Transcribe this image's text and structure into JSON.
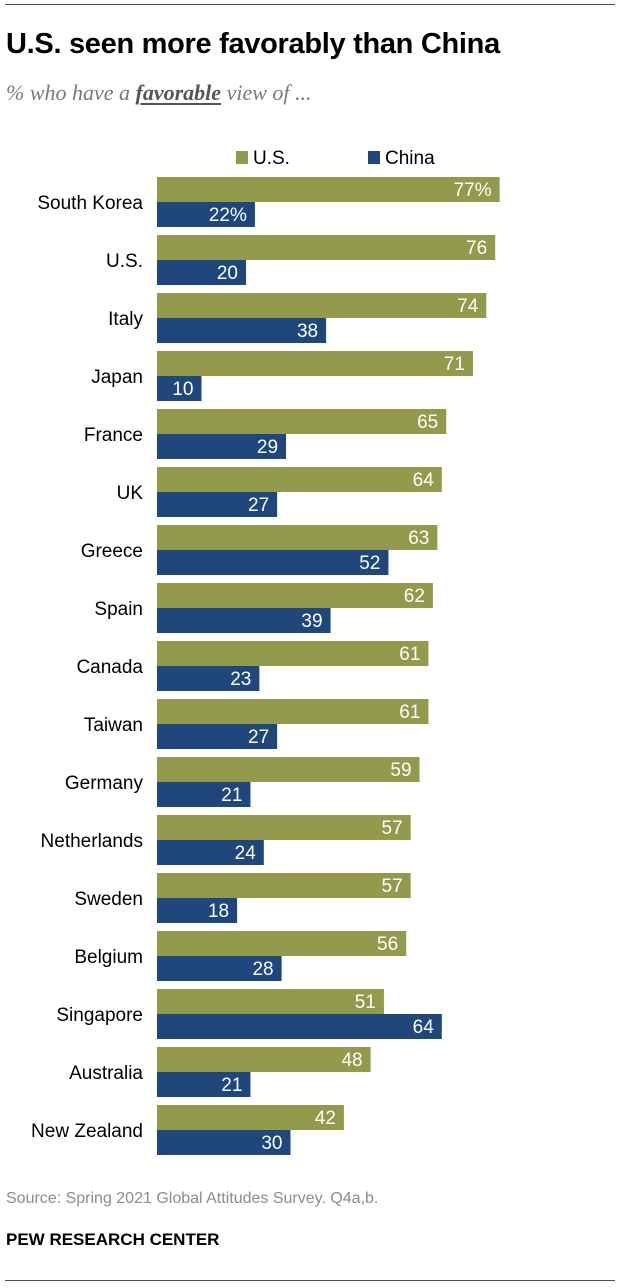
{
  "header": {
    "title": "U.S. seen more favorably than China",
    "subtitle_prefix": "% who have a ",
    "subtitle_emphasis": "favorable",
    "subtitle_suffix": " view of ..."
  },
  "chart_data": {
    "type": "bar",
    "orientation": "horizontal",
    "title": "U.S. seen more favorably than China",
    "subtitle": "% who have a favorable view of ...",
    "categories": [
      "South Korea",
      "U.S.",
      "Italy",
      "Japan",
      "France",
      "UK",
      "Greece",
      "Spain",
      "Canada",
      "Taiwan",
      "Germany",
      "Netherlands",
      "Sweden",
      "Belgium",
      "Singapore",
      "Australia",
      "New Zealand"
    ],
    "series": [
      {
        "name": "U.S.",
        "color": "#949a4c",
        "values": [
          77,
          76,
          74,
          71,
          65,
          64,
          63,
          62,
          61,
          61,
          59,
          57,
          57,
          56,
          51,
          48,
          42
        ],
        "labels": [
          "77%",
          "76",
          "74",
          "71",
          "65",
          "64",
          "63",
          "62",
          "61",
          "61",
          "59",
          "57",
          "57",
          "56",
          "51",
          "48",
          "42"
        ]
      },
      {
        "name": "China",
        "color": "#1f477b",
        "values": [
          22,
          20,
          38,
          10,
          29,
          27,
          52,
          39,
          23,
          27,
          21,
          24,
          18,
          28,
          64,
          21,
          30
        ],
        "labels": [
          "22%",
          "20",
          "38",
          "10",
          "29",
          "27",
          "52",
          "39",
          "23",
          "27",
          "21",
          "24",
          "18",
          "28",
          "64",
          "21",
          "30"
        ]
      }
    ],
    "xlim": [
      0,
      100
    ],
    "legend": {
      "position": "top"
    },
    "grid": false,
    "label_color": "#ffffff"
  },
  "footer": {
    "source": "Source: Spring 2021 Global Attitudes Survey. Q4a,b.",
    "brand": "PEW RESEARCH CENTER"
  }
}
